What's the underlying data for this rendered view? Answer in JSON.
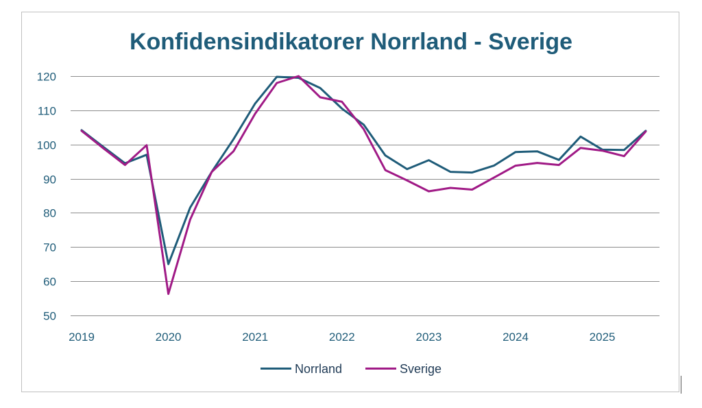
{
  "chart_data": {
    "type": "line",
    "title": "Konfidensindikatorer Norrland - Sverige",
    "xlabel": "",
    "ylabel": "",
    "ylim": [
      50,
      120
    ],
    "yticks": [
      50,
      60,
      70,
      80,
      90,
      100,
      110,
      120
    ],
    "xlim": [
      2019,
      2025.75
    ],
    "xticks": [
      "2019",
      "2020",
      "2021",
      "2022",
      "2023",
      "2024",
      "2025"
    ],
    "grid": true,
    "legend": "bottom",
    "x": [
      2019.0,
      2019.25,
      2019.5,
      2019.75,
      2020.0,
      2020.25,
      2020.5,
      2020.75,
      2021.0,
      2021.25,
      2021.5,
      2021.75,
      2022.0,
      2022.25,
      2022.5,
      2022.75,
      2023.0,
      2023.25,
      2023.5,
      2023.75,
      2024.0,
      2024.25,
      2024.5,
      2024.75,
      2025.0,
      2025.25,
      2025.5
    ],
    "series": [
      {
        "name": "Norrland",
        "color": "#1f5c79",
        "values": [
          104.2,
          99.3,
          94.5,
          97.0,
          65.0,
          81.5,
          92.0,
          101.5,
          112.0,
          119.8,
          119.5,
          116.5,
          110.5,
          105.8,
          96.8,
          92.8,
          95.4,
          92.0,
          91.8,
          93.8,
          97.8,
          98.0,
          95.5,
          102.3,
          98.5,
          98.4,
          104.0
        ]
      },
      {
        "name": "Sverige",
        "color": "#a01a86",
        "values": [
          104.0,
          98.9,
          94.0,
          99.8,
          56.3,
          78.0,
          92.0,
          98.0,
          109.0,
          118.0,
          120.0,
          113.8,
          112.5,
          104.5,
          92.5,
          89.5,
          86.3,
          87.3,
          86.8,
          90.3,
          93.8,
          94.6,
          94.0,
          99.0,
          98.2,
          96.6,
          103.8
        ]
      }
    ]
  }
}
